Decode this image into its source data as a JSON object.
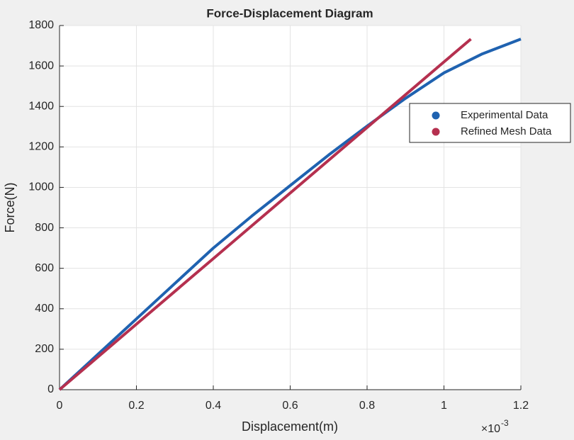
{
  "chart_data": {
    "type": "line",
    "title": "Force-Displacement Diagram",
    "x_label": "Displacement(m)",
    "y_label": "Force(N)",
    "x_exponent": {
      "base": "×10",
      "power": "-3"
    },
    "xlim": [
      0,
      0.0012
    ],
    "xticks": [
      0,
      {
        "value": 0.0002,
        "label": "0.2"
      },
      {
        "value": 0.0004,
        "label": "0.4"
      },
      {
        "value": 0.0006,
        "label": "0.6"
      },
      {
        "value": 0.0008,
        "label": "0.8"
      },
      {
        "value": 0.001,
        "label": "1"
      },
      {
        "value": 0.0012,
        "label": "1.2"
      }
    ],
    "ylim": [
      0,
      1800
    ],
    "yticks": [
      0,
      200,
      400,
      600,
      800,
      1000,
      1200,
      1400,
      1600,
      1800
    ],
    "grid": true,
    "legend": "outside-right",
    "series": [
      {
        "name": "Experimental Data",
        "color": "#1f62b0",
        "x": [
          0,
          0.0001,
          0.0002,
          0.0003,
          0.0004,
          0.0005,
          0.0006,
          0.0007,
          0.0008,
          0.0009,
          0.001,
          0.0011,
          0.0012
        ],
        "values": [
          0,
          175,
          350,
          525,
          700,
          858,
          1009,
          1160,
          1303,
          1440,
          1566,
          1660,
          1733
        ]
      },
      {
        "name": "Refined Mesh Data",
        "color": "#b5304f",
        "x": [
          0,
          0.0002,
          0.0004,
          0.0006,
          0.0008,
          0.001,
          0.00107
        ],
        "values": [
          0,
          324,
          648,
          972,
          1296,
          1620,
          1733
        ]
      }
    ]
  }
}
